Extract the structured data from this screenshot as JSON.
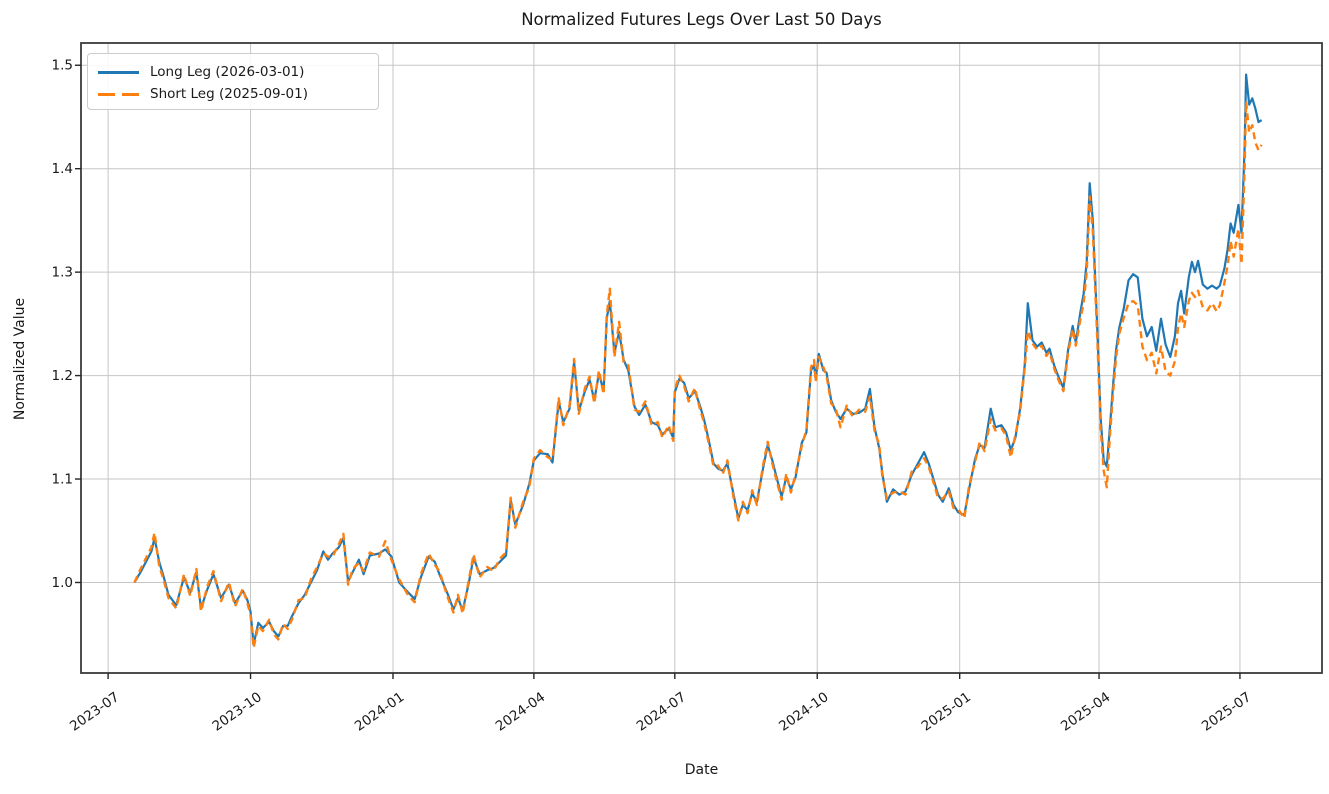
{
  "meta": {
    "title": "Normalized Futures Legs Over Last 50 Days",
    "xlabel": "Date",
    "ylabel": "Normalized Value"
  },
  "legend": [
    {
      "label": "Long Leg (2026-03-01)",
      "color": "#1f77b4",
      "style": "solid"
    },
    {
      "label": "Short Leg (2025-09-01)",
      "color": "#ff7f0e",
      "style": "dashed"
    }
  ],
  "colors": {
    "long_leg": "#1f77b4",
    "short_leg": "#ff7f0e",
    "grid": "#c6c6c6",
    "spine": "#3b3b3b",
    "text": "#1a1a1a"
  },
  "chart_data": {
    "type": "line",
    "title": "Normalized Futures Legs Over Last 50 Days",
    "xlabel": "Date",
    "ylabel": "Normalized Value",
    "grid": true,
    "legend_position": "upper left",
    "x_unit": "days since 2023-07-01",
    "x_domain_days": [
      -17.5,
      784
    ],
    "y_domain": [
      0.9125,
      1.5215
    ],
    "x_ticks": [
      {
        "day": 0,
        "label": "2023-07"
      },
      {
        "day": 92,
        "label": "2023-10"
      },
      {
        "day": 184,
        "label": "2024-01"
      },
      {
        "day": 275,
        "label": "2024-04"
      },
      {
        "day": 366,
        "label": "2024-07"
      },
      {
        "day": 458,
        "label": "2024-10"
      },
      {
        "day": 550,
        "label": "2025-01"
      },
      {
        "day": 640,
        "label": "2025-04"
      },
      {
        "day": 731,
        "label": "2025-07"
      }
    ],
    "y_ticks": [
      {
        "value": 1.0,
        "label": "1.0"
      },
      {
        "value": 1.1,
        "label": "1.1"
      },
      {
        "value": 1.2,
        "label": "1.2"
      },
      {
        "value": 1.3,
        "label": "1.3"
      },
      {
        "value": 1.4,
        "label": "1.4"
      },
      {
        "value": 1.5,
        "label": "1.5"
      }
    ],
    "days": [
      17,
      21,
      28,
      30,
      33,
      36,
      39,
      44,
      49,
      53,
      57,
      60,
      64,
      68,
      73,
      78,
      82,
      87,
      90,
      92,
      94,
      97,
      100,
      104,
      107,
      110,
      113,
      116,
      119,
      123,
      127,
      131,
      135,
      139,
      142,
      145,
      149,
      152,
      155,
      158,
      162,
      165,
      169,
      175,
      179,
      183,
      188,
      194,
      198,
      202,
      207,
      211,
      214,
      219,
      223,
      226,
      229,
      233,
      236,
      240,
      245,
      249,
      253,
      257,
      260,
      263,
      268,
      272,
      275,
      279,
      284,
      287,
      291,
      294,
      298,
      301,
      304,
      308,
      311,
      314,
      317,
      320,
      322,
      324,
      327,
      330,
      333,
      336,
      340,
      343,
      347,
      351,
      355,
      358,
      362,
      365,
      366,
      369,
      372,
      375,
      379,
      382,
      385,
      388,
      391,
      394,
      397,
      400,
      404,
      407,
      410,
      413,
      416,
      419,
      423,
      426,
      429,
      432,
      435,
      438,
      441,
      444,
      448,
      451,
      454,
      456,
      457,
      459,
      462,
      464,
      467,
      470,
      473,
      477,
      481,
      485,
      489,
      492,
      495,
      498,
      500,
      503,
      507,
      511,
      515,
      519,
      523,
      527,
      530,
      533,
      536,
      539,
      543,
      546,
      549,
      553,
      556,
      560,
      563,
      566,
      570,
      573,
      577,
      580,
      583,
      586,
      589,
      592,
      594,
      597,
      600,
      603,
      606,
      608,
      611,
      614,
      617,
      620,
      623,
      625,
      628,
      630,
      632,
      634,
      636,
      639,
      641,
      643,
      645,
      647,
      649,
      651,
      653,
      656,
      659,
      662,
      665,
      668,
      671,
      674,
      677,
      680,
      683,
      686,
      689,
      691,
      693,
      695,
      698,
      700,
      702,
      704,
      707,
      710,
      713,
      716,
      718,
      721,
      723,
      725,
      727,
      730,
      732,
      734,
      735,
      737,
      739,
      741,
      743,
      745
    ],
    "series": [
      {
        "id": "long-leg",
        "name": "Long Leg (2026-03-01)",
        "color": "#1f77b4",
        "style": "solid",
        "width": 2.2,
        "values": [
          1.0,
          1.01,
          1.03,
          1.043,
          1.02,
          1.005,
          0.988,
          0.978,
          1.005,
          0.99,
          1.01,
          0.975,
          0.993,
          1.008,
          0.985,
          0.998,
          0.98,
          0.992,
          0.983,
          0.972,
          0.94,
          0.961,
          0.956,
          0.962,
          0.953,
          0.948,
          0.958,
          0.958,
          0.968,
          0.98,
          0.988,
          1.0,
          1.012,
          1.03,
          1.022,
          1.028,
          1.034,
          1.043,
          1.001,
          1.01,
          1.022,
          1.008,
          1.026,
          1.028,
          1.032,
          1.025,
          1.0,
          0.99,
          0.984,
          1.005,
          1.025,
          1.02,
          1.008,
          0.99,
          0.974,
          0.985,
          0.973,
          1.0,
          1.024,
          1.008,
          1.012,
          1.014,
          1.02,
          1.026,
          1.08,
          1.056,
          1.075,
          1.095,
          1.118,
          1.125,
          1.124,
          1.116,
          1.175,
          1.155,
          1.168,
          1.213,
          1.166,
          1.185,
          1.196,
          1.176,
          1.202,
          1.185,
          1.255,
          1.272,
          1.222,
          1.242,
          1.215,
          1.205,
          1.17,
          1.162,
          1.172,
          1.155,
          1.152,
          1.143,
          1.149,
          1.14,
          1.184,
          1.197,
          1.193,
          1.178,
          1.185,
          1.172,
          1.157,
          1.137,
          1.115,
          1.11,
          1.108,
          1.115,
          1.085,
          1.062,
          1.075,
          1.07,
          1.086,
          1.078,
          1.11,
          1.133,
          1.118,
          1.1,
          1.083,
          1.102,
          1.09,
          1.102,
          1.135,
          1.145,
          1.205,
          1.21,
          1.197,
          1.221,
          1.205,
          1.203,
          1.176,
          1.165,
          1.158,
          1.168,
          1.163,
          1.164,
          1.168,
          1.187,
          1.15,
          1.13,
          1.106,
          1.078,
          1.09,
          1.085,
          1.088,
          1.104,
          1.115,
          1.126,
          1.115,
          1.1,
          1.085,
          1.078,
          1.091,
          1.075,
          1.068,
          1.065,
          1.09,
          1.12,
          1.133,
          1.13,
          1.168,
          1.15,
          1.152,
          1.145,
          1.128,
          1.14,
          1.168,
          1.21,
          1.27,
          1.234,
          1.228,
          1.232,
          1.222,
          1.226,
          1.21,
          1.198,
          1.188,
          1.225,
          1.248,
          1.232,
          1.262,
          1.279,
          1.31,
          1.386,
          1.35,
          1.24,
          1.16,
          1.118,
          1.112,
          1.15,
          1.19,
          1.225,
          1.246,
          1.265,
          1.292,
          1.298,
          1.295,
          1.255,
          1.238,
          1.247,
          1.224,
          1.255,
          1.23,
          1.218,
          1.238,
          1.27,
          1.282,
          1.26,
          1.295,
          1.31,
          1.3,
          1.311,
          1.288,
          1.284,
          1.287,
          1.284,
          1.287,
          1.304,
          1.322,
          1.347,
          1.338,
          1.365,
          1.338,
          1.42,
          1.491,
          1.462,
          1.468,
          1.458,
          1.445,
          1.447
        ]
      },
      {
        "id": "short-leg",
        "name": "Short Leg (2025-09-01)",
        "color": "#ff7f0e",
        "style": "dashed",
        "width": 2.4,
        "values": [
          1.0,
          1.013,
          1.034,
          1.048,
          1.016,
          1.002,
          0.985,
          0.975,
          1.008,
          0.987,
          1.013,
          0.972,
          0.996,
          1.011,
          0.982,
          1.0,
          0.977,
          0.994,
          0.98,
          0.969,
          0.937,
          0.958,
          0.953,
          0.964,
          0.95,
          0.945,
          0.96,
          0.955,
          0.965,
          0.983,
          0.985,
          1.003,
          1.015,
          1.028,
          1.025,
          1.025,
          1.037,
          1.047,
          0.998,
          1.013,
          1.019,
          1.011,
          1.029,
          1.025,
          1.04,
          1.022,
          1.003,
          0.987,
          0.981,
          1.008,
          1.028,
          1.017,
          1.011,
          0.987,
          0.971,
          0.988,
          0.97,
          1.003,
          1.027,
          1.005,
          1.015,
          1.011,
          1.023,
          1.029,
          1.082,
          1.053,
          1.078,
          1.092,
          1.12,
          1.128,
          1.121,
          1.119,
          1.178,
          1.152,
          1.171,
          1.216,
          1.163,
          1.188,
          1.199,
          1.173,
          1.205,
          1.182,
          1.258,
          1.284,
          1.218,
          1.252,
          1.212,
          1.21,
          1.167,
          1.165,
          1.175,
          1.152,
          1.155,
          1.14,
          1.152,
          1.137,
          1.187,
          1.2,
          1.19,
          1.175,
          1.188,
          1.169,
          1.154,
          1.134,
          1.112,
          1.113,
          1.105,
          1.118,
          1.082,
          1.06,
          1.078,
          1.067,
          1.089,
          1.075,
          1.113,
          1.136,
          1.115,
          1.097,
          1.08,
          1.105,
          1.087,
          1.105,
          1.132,
          1.148,
          1.208,
          1.215,
          1.194,
          1.218,
          1.208,
          1.2,
          1.173,
          1.168,
          1.15,
          1.171,
          1.16,
          1.167,
          1.165,
          1.18,
          1.147,
          1.133,
          1.103,
          1.081,
          1.087,
          1.088,
          1.085,
          1.107,
          1.112,
          1.12,
          1.112,
          1.097,
          1.082,
          1.081,
          1.088,
          1.072,
          1.071,
          1.062,
          1.093,
          1.117,
          1.136,
          1.127,
          1.158,
          1.147,
          1.149,
          1.142,
          1.121,
          1.143,
          1.165,
          1.207,
          1.243,
          1.231,
          1.225,
          1.229,
          1.219,
          1.223,
          1.207,
          1.195,
          1.185,
          1.222,
          1.245,
          1.229,
          1.255,
          1.27,
          1.3,
          1.373,
          1.34,
          1.23,
          1.15,
          1.108,
          1.092,
          1.142,
          1.182,
          1.218,
          1.24,
          1.256,
          1.27,
          1.272,
          1.268,
          1.228,
          1.215,
          1.222,
          1.202,
          1.228,
          1.204,
          1.2,
          1.214,
          1.246,
          1.26,
          1.247,
          1.272,
          1.28,
          1.276,
          1.282,
          1.266,
          1.263,
          1.27,
          1.262,
          1.268,
          1.29,
          1.306,
          1.33,
          1.315,
          1.342,
          1.308,
          1.4,
          1.465,
          1.435,
          1.442,
          1.425,
          1.418,
          1.423
        ]
      }
    ]
  }
}
